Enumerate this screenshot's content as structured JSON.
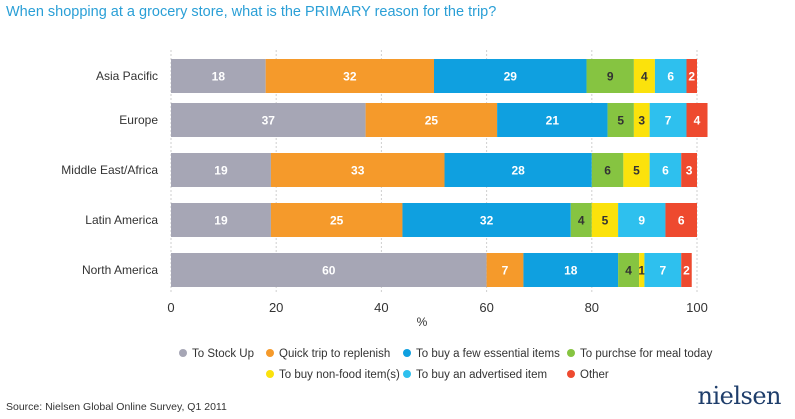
{
  "title": "When shopping at a grocery store, what is the PRIMARY reason for the trip?",
  "source": "Source: Nielsen Global Online Survey, Q1 2011",
  "brand": "nielsen",
  "chart_data": {
    "type": "bar",
    "orientation": "horizontal",
    "stacked": true,
    "title": "When shopping at a grocery store, what is the PRIMARY reason for the trip?",
    "xlabel": "%",
    "ylabel": "",
    "xlim": [
      0,
      100
    ],
    "xticks": [
      0,
      20,
      40,
      60,
      80,
      100
    ],
    "grid": true,
    "legend_position": "bottom",
    "categories": [
      "Asia Pacific",
      "Europe",
      "Middle East/Africa",
      "Latin America",
      "North America"
    ],
    "series": [
      {
        "name": "To Stock Up",
        "color": "#a6a6b5",
        "values": [
          18,
          37,
          19,
          19,
          60
        ]
      },
      {
        "name": "Quick trip to replenish",
        "color": "#f59a2b",
        "values": [
          32,
          25,
          33,
          25,
          7
        ]
      },
      {
        "name": "To buy a few essential items",
        "color": "#0fa0e0",
        "values": [
          29,
          21,
          28,
          32,
          18
        ]
      },
      {
        "name": "To purchse for meal today",
        "color": "#86c441",
        "values": [
          9,
          5,
          6,
          4,
          4
        ]
      },
      {
        "name": "To buy non-food item(s)",
        "color": "#fbe20c",
        "values": [
          4,
          3,
          5,
          5,
          1
        ]
      },
      {
        "name": "To buy an advertised item",
        "color": "#2ec0ee",
        "values": [
          6,
          7,
          6,
          9,
          7
        ]
      },
      {
        "name": "Other",
        "color": "#ee4a2f",
        "values": [
          2,
          4,
          3,
          6,
          2
        ]
      }
    ]
  }
}
